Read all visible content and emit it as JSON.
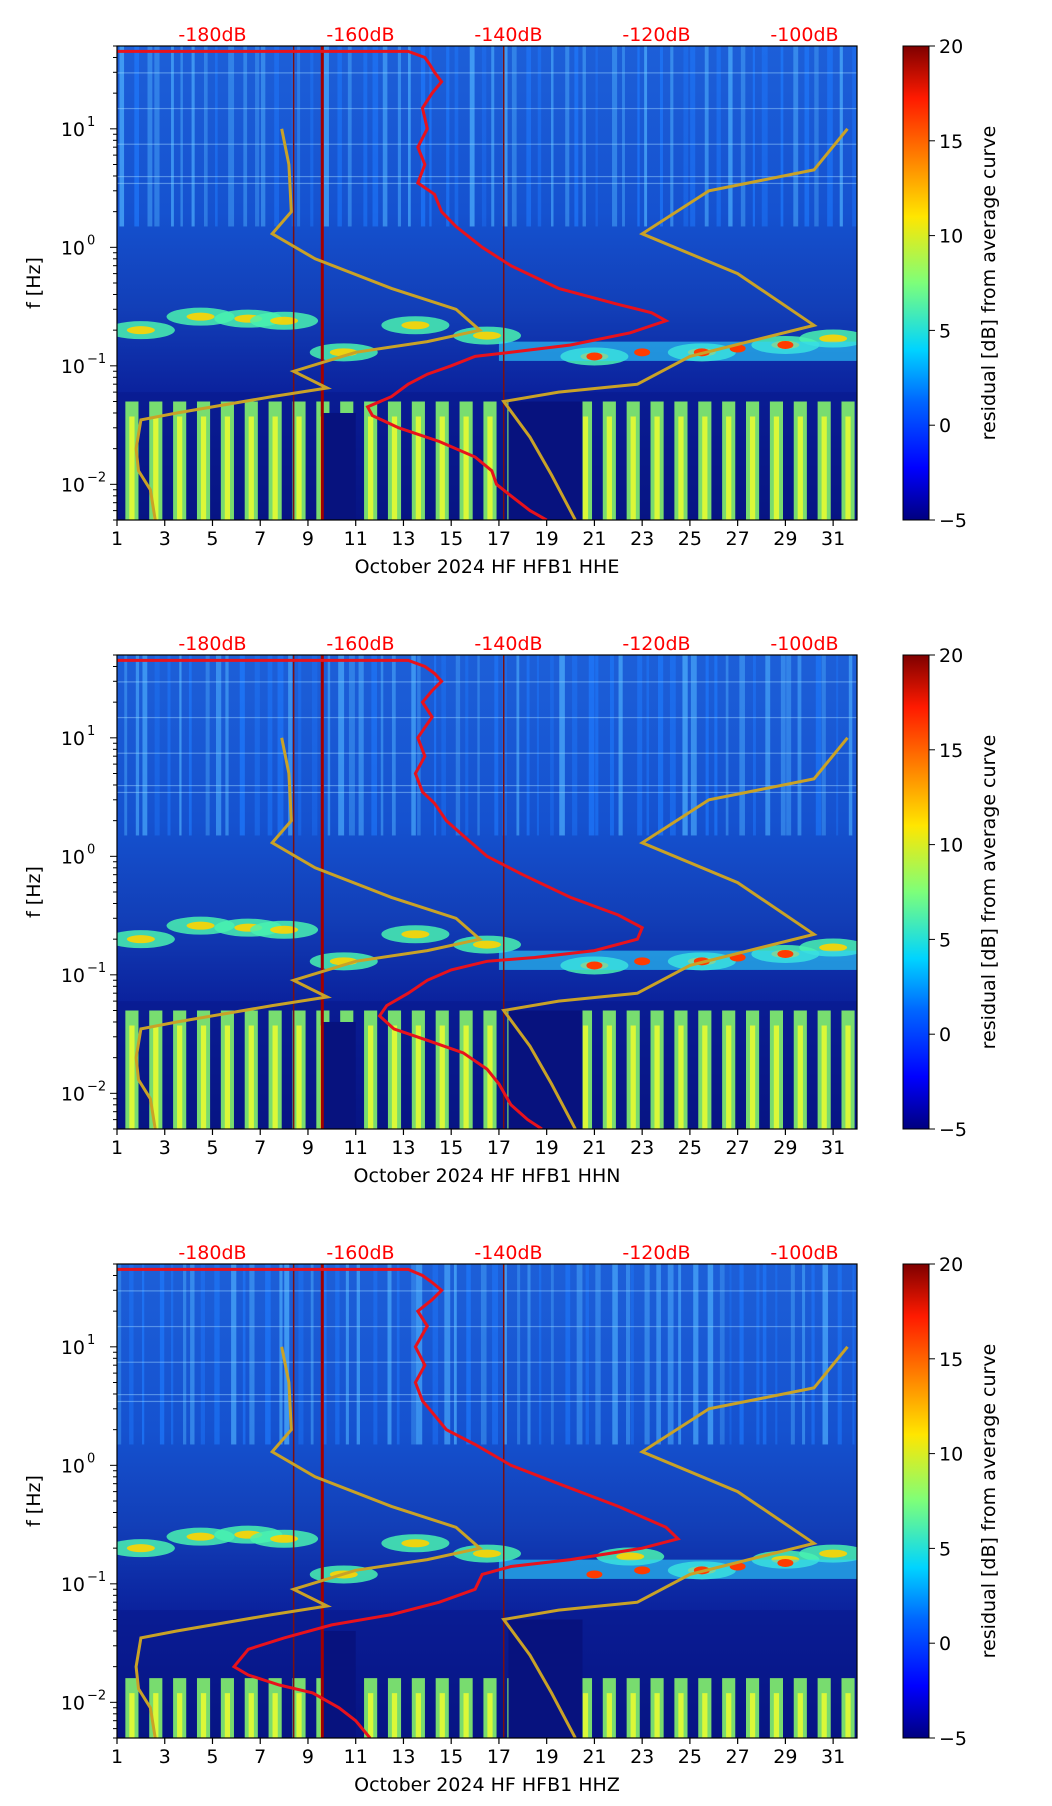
{
  "colors": {
    "db_scale_text": "#ff0000",
    "red_curve": "#e8121c",
    "model_curve": "#c9a227",
    "axis": "#000000"
  },
  "chart_data": [
    {
      "type": "heatmap",
      "channel": "HHE",
      "xlabel": "October 2024 HF HFB1  HHE",
      "ylabel": "f [Hz]",
      "x_ticks": [
        "1",
        "3",
        "5",
        "7",
        "9",
        "11",
        "13",
        "15",
        "17",
        "19",
        "21",
        "23",
        "25",
        "27",
        "29",
        "31"
      ],
      "x_range": [
        1,
        32
      ],
      "y_scale": "log",
      "y_range": [
        0.005,
        50
      ],
      "y_ticks": [
        {
          "exp": "1",
          "label": "10"
        },
        {
          "exp": "0",
          "label": "10"
        },
        {
          "exp": "-1",
          "label": "10"
        },
        {
          "exp": "-2",
          "label": "10"
        }
      ],
      "db_axis": {
        "labels": [
          "-180dB",
          "-160dB",
          "-140dB",
          "-120dB",
          "-100dB"
        ],
        "positions_day": [
          5.0,
          11.2,
          17.4,
          23.6,
          29.8
        ]
      },
      "colorbar": {
        "label": "residual [dB] from average curve",
        "ticks": [
          "20",
          "15",
          "10",
          "5",
          "0",
          "−5"
        ],
        "range": [
          -5,
          20
        ]
      },
      "vertical_lines_day": [
        8.4,
        9.6,
        17.2
      ],
      "red_curve_points": [
        [
          1,
          45
        ],
        [
          13.2,
          45
        ],
        [
          13.9,
          40
        ],
        [
          14.1,
          35
        ],
        [
          14.3,
          30
        ],
        [
          14.6,
          25
        ],
        [
          14.2,
          20
        ],
        [
          13.8,
          15
        ],
        [
          14.0,
          10
        ],
        [
          13.6,
          7
        ],
        [
          13.9,
          5
        ],
        [
          13.6,
          3.5
        ],
        [
          14.3,
          2.8
        ],
        [
          14.6,
          2.0
        ],
        [
          15.2,
          1.5
        ],
        [
          16.3,
          1.0
        ],
        [
          17.5,
          0.7
        ],
        [
          19.5,
          0.45
        ],
        [
          22,
          0.33
        ],
        [
          23.4,
          0.28
        ],
        [
          24,
          0.24
        ],
        [
          22.5,
          0.19
        ],
        [
          20,
          0.15
        ],
        [
          17.5,
          0.13
        ],
        [
          16,
          0.12
        ],
        [
          15,
          0.1
        ],
        [
          14,
          0.085
        ],
        [
          13.2,
          0.07
        ],
        [
          12.5,
          0.055
        ],
        [
          11.5,
          0.045
        ],
        [
          11.7,
          0.038
        ],
        [
          12.8,
          0.03
        ],
        [
          14.5,
          0.023
        ],
        [
          16,
          0.017
        ],
        [
          16.7,
          0.013
        ],
        [
          16.9,
          0.01
        ],
        [
          17.5,
          0.008
        ],
        [
          18.3,
          0.006
        ],
        [
          19,
          0.005
        ]
      ],
      "model_curve_low_points": [
        [
          7.9,
          10
        ],
        [
          8.2,
          5
        ],
        [
          8.3,
          2
        ],
        [
          7.5,
          1.3
        ],
        [
          9.3,
          0.8
        ],
        [
          12.5,
          0.45
        ],
        [
          15.2,
          0.3
        ],
        [
          16.2,
          0.2
        ],
        [
          14,
          0.16
        ],
        [
          11,
          0.13
        ],
        [
          8.4,
          0.09
        ],
        [
          9.8,
          0.065
        ],
        [
          7.5,
          0.055
        ],
        [
          3.5,
          0.04
        ],
        [
          2,
          0.035
        ],
        [
          1.8,
          0.02
        ],
        [
          1.9,
          0.013
        ],
        [
          2.4,
          0.009
        ],
        [
          2.6,
          0.005
        ]
      ],
      "model_curve_high_points": [
        [
          31.6,
          10
        ],
        [
          30.2,
          4.5
        ],
        [
          25.8,
          3
        ],
        [
          23,
          1.3
        ],
        [
          27,
          0.6
        ],
        [
          30.2,
          0.22
        ],
        [
          25,
          0.12
        ],
        [
          22.8,
          0.07
        ],
        [
          19.5,
          0.06
        ],
        [
          17.2,
          0.05
        ],
        [
          18.3,
          0.025
        ],
        [
          19.2,
          0.012
        ],
        [
          20.2,
          0.005
        ]
      ]
    },
    {
      "type": "heatmap",
      "channel": "HHN",
      "xlabel": "October 2024 HF HFB1  HHN",
      "ylabel": "f [Hz]",
      "x_ticks": [
        "1",
        "3",
        "5",
        "7",
        "9",
        "11",
        "13",
        "15",
        "17",
        "19",
        "21",
        "23",
        "25",
        "27",
        "29",
        "31"
      ],
      "x_range": [
        1,
        32
      ],
      "y_scale": "log",
      "y_range": [
        0.005,
        50
      ],
      "y_ticks": [
        {
          "exp": "1",
          "label": "10"
        },
        {
          "exp": "0",
          "label": "10"
        },
        {
          "exp": "-1",
          "label": "10"
        },
        {
          "exp": "-2",
          "label": "10"
        }
      ],
      "db_axis": {
        "labels": [
          "-180dB",
          "-160dB",
          "-140dB",
          "-120dB",
          "-100dB"
        ],
        "positions_day": [
          5.0,
          11.2,
          17.4,
          23.6,
          29.8
        ]
      },
      "colorbar": {
        "label": "residual [dB] from average curve",
        "ticks": [
          "20",
          "15",
          "10",
          "5",
          "0",
          "−5"
        ],
        "range": [
          -5,
          20
        ]
      },
      "vertical_lines_day": [
        8.4,
        9.6,
        17.2
      ],
      "red_curve_points": [
        [
          1,
          45
        ],
        [
          13.2,
          45
        ],
        [
          13.9,
          40
        ],
        [
          14.3,
          35
        ],
        [
          14.6,
          30
        ],
        [
          14.2,
          25
        ],
        [
          13.8,
          20
        ],
        [
          14.2,
          15
        ],
        [
          13.6,
          10
        ],
        [
          13.9,
          7
        ],
        [
          13.5,
          5
        ],
        [
          13.8,
          3.5
        ],
        [
          14.3,
          2.8
        ],
        [
          14.8,
          2.0
        ],
        [
          15.5,
          1.5
        ],
        [
          16.5,
          1.0
        ],
        [
          18,
          0.7
        ],
        [
          20,
          0.45
        ],
        [
          22,
          0.32
        ],
        [
          23,
          0.25
        ],
        [
          22.8,
          0.2
        ],
        [
          21,
          0.16
        ],
        [
          18.5,
          0.14
        ],
        [
          16.5,
          0.13
        ],
        [
          15,
          0.11
        ],
        [
          14,
          0.09
        ],
        [
          13.2,
          0.07
        ],
        [
          12.3,
          0.055
        ],
        [
          12,
          0.045
        ],
        [
          12.6,
          0.035
        ],
        [
          14,
          0.028
        ],
        [
          15.5,
          0.022
        ],
        [
          16.5,
          0.016
        ],
        [
          17,
          0.012
        ],
        [
          17.5,
          0.008
        ],
        [
          18.2,
          0.006
        ],
        [
          18.8,
          0.005
        ]
      ],
      "model_curve_low_points": [
        [
          7.9,
          10
        ],
        [
          8.2,
          5
        ],
        [
          8.3,
          2
        ],
        [
          7.5,
          1.3
        ],
        [
          9.3,
          0.8
        ],
        [
          12.5,
          0.45
        ],
        [
          15.2,
          0.3
        ],
        [
          16.2,
          0.2
        ],
        [
          14,
          0.16
        ],
        [
          11,
          0.13
        ],
        [
          8.4,
          0.09
        ],
        [
          9.8,
          0.065
        ],
        [
          7.5,
          0.055
        ],
        [
          3.5,
          0.04
        ],
        [
          2,
          0.035
        ],
        [
          1.8,
          0.02
        ],
        [
          1.9,
          0.013
        ],
        [
          2.4,
          0.009
        ],
        [
          2.6,
          0.005
        ]
      ],
      "model_curve_high_points": [
        [
          31.6,
          10
        ],
        [
          30.2,
          4.5
        ],
        [
          25.8,
          3
        ],
        [
          23,
          1.3
        ],
        [
          27,
          0.6
        ],
        [
          30.2,
          0.22
        ],
        [
          25,
          0.12
        ],
        [
          22.8,
          0.07
        ],
        [
          19.5,
          0.06
        ],
        [
          17.2,
          0.05
        ],
        [
          18.3,
          0.025
        ],
        [
          19.2,
          0.012
        ],
        [
          20.2,
          0.005
        ]
      ]
    },
    {
      "type": "heatmap",
      "channel": "HHZ",
      "xlabel": "October 2024 HF HFB1  HHZ",
      "ylabel": "f [Hz]",
      "x_ticks": [
        "1",
        "3",
        "5",
        "7",
        "9",
        "11",
        "13",
        "15",
        "17",
        "19",
        "21",
        "23",
        "25",
        "27",
        "29",
        "31"
      ],
      "x_range": [
        1,
        32
      ],
      "y_scale": "log",
      "y_range": [
        0.005,
        50
      ],
      "y_ticks": [
        {
          "exp": "1",
          "label": "10"
        },
        {
          "exp": "0",
          "label": "10"
        },
        {
          "exp": "-1",
          "label": "10"
        },
        {
          "exp": "-2",
          "label": "10"
        }
      ],
      "db_axis": {
        "labels": [
          "-180dB",
          "-160dB",
          "-140dB",
          "-120dB",
          "-100dB"
        ],
        "positions_day": [
          5.0,
          11.2,
          17.4,
          23.6,
          29.8
        ]
      },
      "colorbar": {
        "label": "residual [dB] from average curve",
        "ticks": [
          "20",
          "15",
          "10",
          "5",
          "0",
          "−5"
        ],
        "range": [
          -5,
          20
        ]
      },
      "vertical_lines_day": [
        8.4,
        9.6,
        17.2
      ],
      "red_curve_points": [
        [
          1,
          45
        ],
        [
          13.2,
          45
        ],
        [
          13.8,
          40
        ],
        [
          14.2,
          35
        ],
        [
          14.6,
          30
        ],
        [
          14.2,
          25
        ],
        [
          13.6,
          20
        ],
        [
          14.0,
          15
        ],
        [
          13.5,
          10
        ],
        [
          13.9,
          7
        ],
        [
          13.5,
          5
        ],
        [
          13.8,
          3.5
        ],
        [
          14.2,
          2.8
        ],
        [
          14.8,
          2.0
        ],
        [
          16,
          1.5
        ],
        [
          17.5,
          1.0
        ],
        [
          19.5,
          0.7
        ],
        [
          22,
          0.45
        ],
        [
          24,
          0.3
        ],
        [
          24.5,
          0.24
        ],
        [
          23,
          0.2
        ],
        [
          20,
          0.16
        ],
        [
          17.5,
          0.14
        ],
        [
          16.3,
          0.12
        ],
        [
          16,
          0.09
        ],
        [
          14.5,
          0.07
        ],
        [
          12.5,
          0.055
        ],
        [
          10,
          0.045
        ],
        [
          8,
          0.035
        ],
        [
          6.5,
          0.028
        ],
        [
          5.9,
          0.02
        ],
        [
          6.5,
          0.017
        ],
        [
          7.8,
          0.014
        ],
        [
          9.2,
          0.012
        ],
        [
          10.3,
          0.009
        ],
        [
          11,
          0.007
        ],
        [
          11.6,
          0.005
        ]
      ],
      "model_curve_low_points": [
        [
          7.9,
          10
        ],
        [
          8.2,
          5
        ],
        [
          8.3,
          2
        ],
        [
          7.5,
          1.3
        ],
        [
          9.3,
          0.8
        ],
        [
          12.5,
          0.45
        ],
        [
          15.2,
          0.3
        ],
        [
          16.2,
          0.2
        ],
        [
          14,
          0.16
        ],
        [
          11,
          0.13
        ],
        [
          8.4,
          0.09
        ],
        [
          9.8,
          0.065
        ],
        [
          7.5,
          0.055
        ],
        [
          3.5,
          0.04
        ],
        [
          2,
          0.035
        ],
        [
          1.8,
          0.02
        ],
        [
          1.9,
          0.013
        ],
        [
          2.4,
          0.009
        ],
        [
          2.6,
          0.005
        ]
      ],
      "model_curve_high_points": [
        [
          31.6,
          10
        ],
        [
          30.2,
          4.5
        ],
        [
          25.8,
          3
        ],
        [
          23,
          1.3
        ],
        [
          27,
          0.6
        ],
        [
          30.2,
          0.22
        ],
        [
          25,
          0.12
        ],
        [
          22.8,
          0.07
        ],
        [
          19.5,
          0.06
        ],
        [
          17.2,
          0.05
        ],
        [
          18.3,
          0.025
        ],
        [
          19.2,
          0.012
        ],
        [
          20.2,
          0.005
        ]
      ]
    }
  ]
}
